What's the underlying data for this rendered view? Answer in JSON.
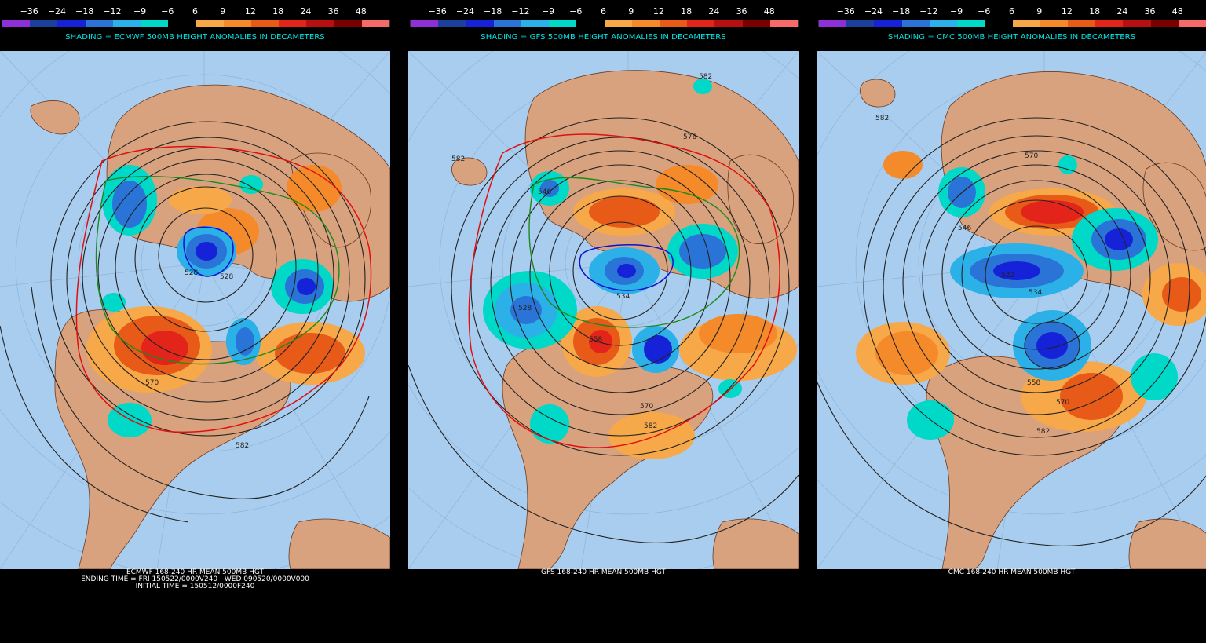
{
  "scale": {
    "ticks": [
      "−36",
      "−24",
      "−18",
      "−12",
      "−9",
      "−6",
      "6",
      "9",
      "12",
      "18",
      "24",
      "36",
      "48"
    ],
    "colors": [
      "#8e2fd8",
      "#1b3f9a",
      "#1522d8",
      "#2a74d8",
      "#2cb0e8",
      "#00d8c8",
      "#000000",
      "#f7a848",
      "#f48a2a",
      "#e85a18",
      "#e3241b",
      "#b80f10",
      "#7a0000",
      "#f76a6a"
    ]
  },
  "panels": [
    {
      "id": "ecmwf",
      "shading_label": "SHADING = ECMWF 500MB HEIGHT ANOMALIES IN DECAMETERS",
      "footer": [
        "ECMWF 168-240 HR MEAN 500MB HGT",
        "ENDING TIME = FRI 150522/0000V240 : WED 090520/0000V000",
        "INITIAL TIME = 150512/0000F240"
      ],
      "contour_labels": [
        "528",
        "528",
        "570",
        "582"
      ]
    },
    {
      "id": "gfs",
      "shading_label": "SHADING = GFS 500MB HEIGHT ANOMALIES IN DECAMETERS",
      "footer": [
        "GFS 168-240 HR MEAN 500MB HGT"
      ],
      "contour_labels": [
        "582",
        "582",
        "576",
        "546",
        "528",
        "534",
        "558",
        "570",
        "582"
      ]
    },
    {
      "id": "cmc",
      "shading_label": "SHADING = CMC 500MB HEIGHT ANOMALIES IN DECAMETERS",
      "footer": [
        "CMC 168-240 HR MEAN 500MB HGT"
      ],
      "contour_labels": [
        "582",
        "570",
        "546",
        "522",
        "534",
        "558",
        "570",
        "582"
      ]
    }
  ],
  "colors": {
    "ocean": "#a9cdee",
    "land": "#d9a27e",
    "text_cyan": "#00e5e5",
    "contour": "#222222",
    "contour_red": "#e01010",
    "contour_green": "#1a8a1a",
    "contour_blue": "#1010d0"
  }
}
